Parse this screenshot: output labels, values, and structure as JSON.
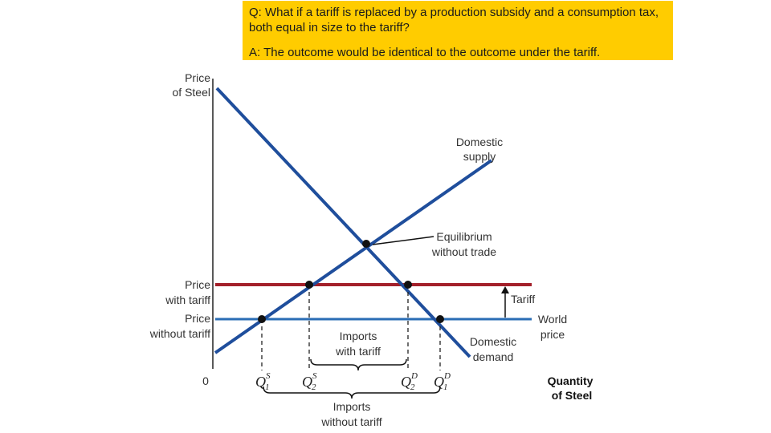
{
  "qa": {
    "question": "Q: What if a tariff is replaced by a production subsidy and a consumption tax, both equal in size to the tariff?",
    "answer": "A: The outcome would be identical to the outcome under the tariff."
  },
  "axes": {
    "y_label_line1": "Price",
    "y_label_line2": "of Steel",
    "x_label_line1": "Quantity",
    "x_label_line2": "of Steel",
    "origin": "0"
  },
  "price_labels": {
    "with_tariff_line1": "Price",
    "with_tariff_line2": "with tariff",
    "without_tariff_line1": "Price",
    "without_tariff_line2": "without tariff"
  },
  "curve_labels": {
    "supply_line1": "Domestic",
    "supply_line2": "supply",
    "demand_line1": "Domestic",
    "demand_line2": "demand",
    "equilibrium_line1": "Equilibrium",
    "equilibrium_line2": "without trade",
    "tariff": "Tariff",
    "world_price_line1": "World",
    "world_price_line2": "price"
  },
  "quantity_labels": {
    "q1s": {
      "symbol": "Q",
      "sub": "1",
      "sup": "S"
    },
    "q2s": {
      "symbol": "Q",
      "sub": "2",
      "sup": "S"
    },
    "q2d": {
      "symbol": "Q",
      "sub": "2",
      "sup": "D"
    },
    "q1d": {
      "symbol": "Q",
      "sub": "1",
      "sup": "D"
    }
  },
  "brackets": {
    "imports_with_tariff_line1": "Imports",
    "imports_with_tariff_line2": "with tariff",
    "imports_without_tariff_line1": "Imports",
    "imports_without_tariff_line2": "without tariff"
  },
  "colors": {
    "curve": "#1f4e9c",
    "tariff_line": "#a3202a",
    "world_line": "#2a6db5",
    "highlight": "#ffcc00"
  }
}
